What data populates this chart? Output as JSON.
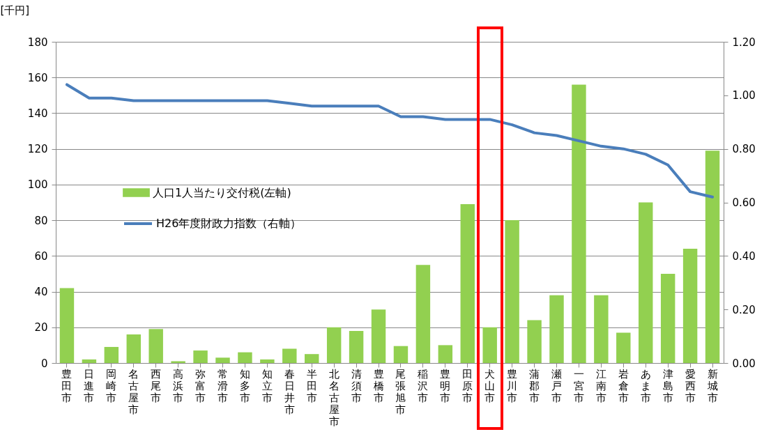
{
  "chart_data": {
    "type": "bar",
    "ylabel": "[千円]",
    "categories": [
      "豊田市",
      "日進市",
      "岡崎市",
      "名古屋市",
      "西尾市",
      "高浜市",
      "弥富市",
      "常滑市",
      "知多市",
      "知立市",
      "春日井市",
      "半田市",
      "北名古屋市",
      "清須市",
      "豊橋市",
      "尾張旭市",
      "稲沢市",
      "豊明市",
      "田原市",
      "犬山市",
      "豊川市",
      "蒲郡市",
      "瀬戸市",
      "一宮市",
      "江南市",
      "岩倉市",
      "あま市",
      "津島市",
      "愛西市",
      "新城市"
    ],
    "series": [
      {
        "name": "人口1人当たり交付税(左軸)",
        "color": "#92d050",
        "values": [
          42,
          2,
          9,
          16,
          19,
          1,
          7,
          3,
          6,
          2,
          8,
          5,
          20,
          18,
          30,
          9.5,
          55,
          10,
          89,
          20,
          80,
          24,
          38,
          156,
          38,
          17,
          90,
          50,
          64,
          119
        ]
      },
      {
        "name": "H26年度財政力指数（右軸）",
        "type": "line",
        "axis": "y2",
        "color": "#4a7ebb",
        "values": [
          1.04,
          0.99,
          0.99,
          0.98,
          0.98,
          0.98,
          0.98,
          0.98,
          0.98,
          0.98,
          0.97,
          0.96,
          0.96,
          0.96,
          0.96,
          0.92,
          0.92,
          0.91,
          0.91,
          0.91,
          0.89,
          0.86,
          0.85,
          0.83,
          0.81,
          0.8,
          0.78,
          0.74,
          0.64,
          0.62
        ]
      }
    ],
    "ylim": [
      0,
      180
    ],
    "yticks": [
      0,
      20,
      40,
      60,
      80,
      100,
      120,
      140,
      160,
      180
    ],
    "y2lim": [
      0,
      1.2
    ],
    "y2ticks": [
      {
        "value": 0,
        "label": "0.00"
      },
      {
        "value": 0.2,
        "label": "0.20"
      },
      {
        "value": 0.4,
        "label": "0.40"
      },
      {
        "value": 0.6,
        "label": "0.60"
      },
      {
        "value": 0.8,
        "label": "0.80"
      },
      {
        "value": 1.0,
        "label": "1.00"
      },
      {
        "value": 1.2,
        "label": "1.20"
      }
    ],
    "grid": "y",
    "legend": "left",
    "marker": "none"
  }
}
